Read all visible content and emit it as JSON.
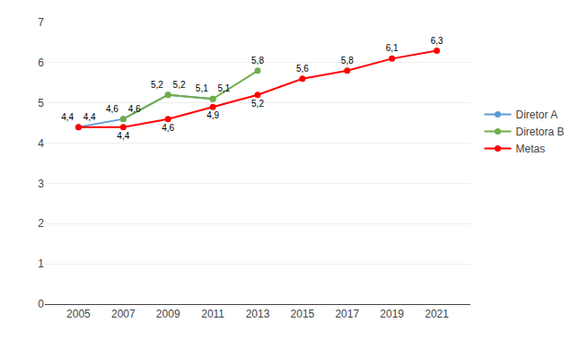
{
  "chart_data": {
    "type": "line",
    "series": [
      {
        "name": "Diretor A",
        "color": "#5B9BD5",
        "x": [
          2005,
          2007,
          2009,
          2011
        ],
        "values": [
          4.4,
          4.6,
          5.2,
          5.1
        ],
        "value_labels": [
          "4,4",
          "4,6",
          "5,2",
          "5,1"
        ]
      },
      {
        "name": "Diretora B",
        "color": "#70AD47",
        "x": [
          2007,
          2009,
          2011,
          2013
        ],
        "values": [
          4.6,
          5.2,
          5.1,
          5.8
        ],
        "value_labels": [
          "4,6",
          "5,2",
          "5,1",
          "5,8"
        ]
      },
      {
        "name": "Metas",
        "color": "#FF0000",
        "x": [
          2005,
          2007,
          2009,
          2011,
          2013,
          2015,
          2017,
          2019,
          2021
        ],
        "values": [
          4.4,
          4.4,
          4.6,
          4.9,
          5.2,
          5.6,
          5.8,
          6.1,
          6.3
        ],
        "value_labels": [
          "4,4",
          "4,4",
          "4,6",
          "4,9",
          "5,2",
          "5,6",
          "5,8",
          "6,1",
          "6,3"
        ]
      }
    ],
    "xlim": [
      2003.5,
      2022.5
    ],
    "xticks": [
      2005,
      2007,
      2009,
      2011,
      2013,
      2015,
      2017,
      2019,
      2021
    ],
    "ylim": [
      0,
      7
    ],
    "yticks": [
      0,
      1,
      2,
      3,
      4,
      5,
      6,
      7
    ],
    "grid": "y",
    "legend": "right",
    "data_labels": true,
    "marker": "circle"
  }
}
